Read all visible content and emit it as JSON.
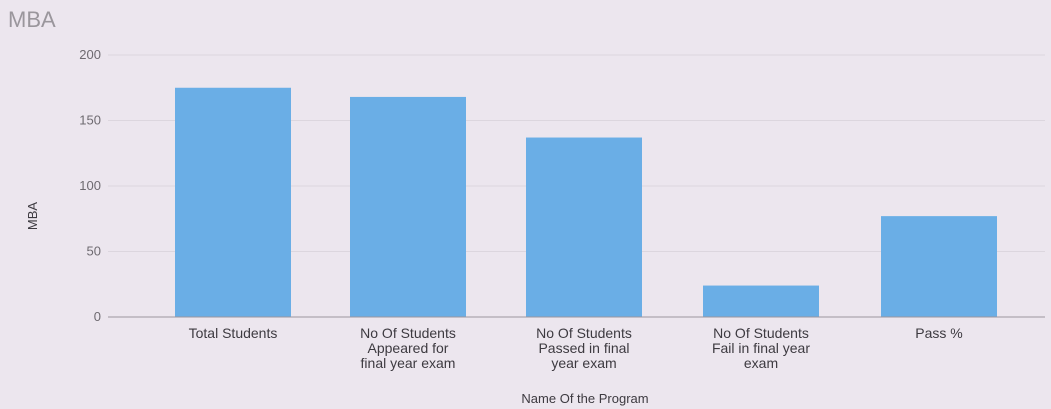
{
  "chart_data": {
    "type": "bar",
    "title": "MBA",
    "xlabel": "Name Of the Program",
    "ylabel": "MBA",
    "ylim": [
      0,
      200
    ],
    "yticks": [
      0,
      50,
      100,
      150,
      200
    ],
    "grid": true,
    "legend": "none",
    "bar_color": "#6aaee6",
    "categories": [
      [
        "Total Students"
      ],
      [
        "No Of Students",
        "Appeared for",
        "final year exam"
      ],
      [
        "No Of Students",
        "Passed in final",
        "year exam"
      ],
      [
        "No Of Students",
        "Fail in final year",
        "exam"
      ],
      [
        "Pass %"
      ]
    ],
    "values": [
      175,
      168,
      137,
      24,
      77
    ]
  }
}
